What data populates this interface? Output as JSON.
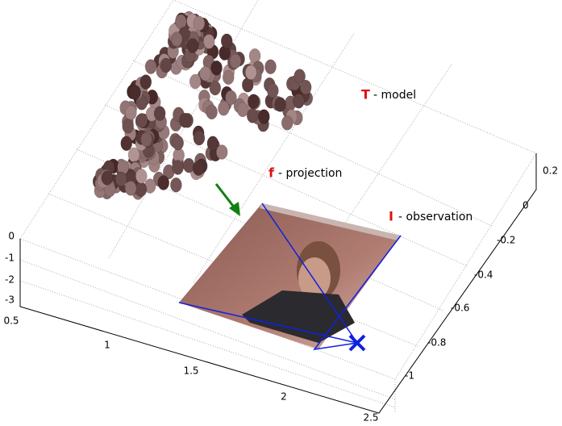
{
  "annotations": {
    "model": {
      "symbol": "T",
      "text": "- model"
    },
    "projection": {
      "symbol": "f",
      "text": "- projection"
    },
    "observation": {
      "symbol": "I",
      "text": "- observation"
    }
  },
  "axes": {
    "x_ticks": [
      "0.5",
      "1",
      "1.5",
      "2",
      "2.5"
    ],
    "z_ticks": [
      "0",
      "-1",
      "-2",
      "-3"
    ],
    "y_ticks": [
      "0.2",
      "0",
      "-0.2",
      "-0.4",
      "-0.6",
      "-0.8",
      "-1"
    ]
  }
}
